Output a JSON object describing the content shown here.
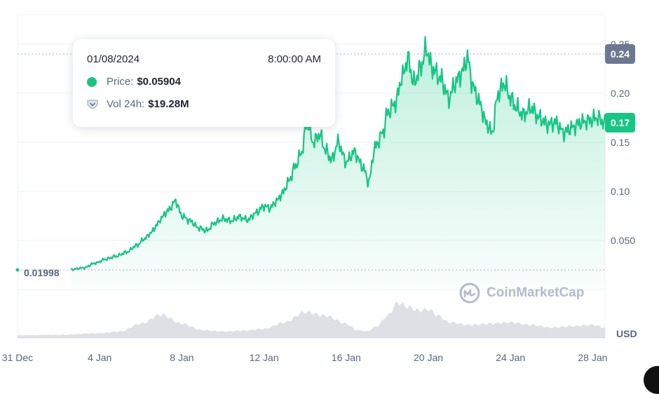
{
  "chart_data": {
    "type": "line",
    "x_labels": [
      "31 Dec",
      "4 Jan",
      "8 Jan",
      "12 Jan",
      "16 Jan",
      "20 Jan",
      "24 Jan",
      "28 Jan"
    ],
    "y_ticks": [
      "0.050",
      "0.10",
      "0.15",
      "0.20",
      "0.25"
    ],
    "y_tick_values": [
      0.05,
      0.1,
      0.15,
      0.2,
      0.25
    ],
    "ylim": [
      0.0,
      0.28
    ],
    "x_day_range": [
      0,
      28.6
    ],
    "price_series": {
      "days": [
        2.6,
        3.2,
        3.8,
        4.3,
        4.8,
        5.3,
        5.8,
        6.2,
        6.5,
        6.8,
        7.0,
        7.3,
        7.7,
        8.0,
        8.4,
        8.8,
        9.2,
        9.6,
        10.0,
        10.4,
        10.8,
        11.2,
        11.6,
        12.0,
        12.3,
        12.6,
        12.9,
        13.2,
        13.5,
        13.8,
        14.1,
        14.4,
        14.7,
        15.0,
        15.3,
        15.6,
        16.0,
        16.4,
        16.8,
        17.1,
        17.4,
        17.8,
        18.0,
        18.4,
        18.7,
        19.0,
        19.3,
        19.6,
        19.9,
        20.2,
        20.6,
        21.0,
        21.3,
        21.6,
        21.9,
        22.2,
        22.5,
        22.8,
        23.1,
        23.4,
        23.7,
        24.0,
        24.3,
        24.6,
        25.0,
        25.4,
        25.8,
        26.2,
        26.6,
        27.0,
        27.4,
        27.8,
        28.2,
        28.6
      ],
      "values": [
        0.0205,
        0.022,
        0.027,
        0.031,
        0.034,
        0.038,
        0.045,
        0.052,
        0.058,
        0.066,
        0.073,
        0.08,
        0.09,
        0.075,
        0.07,
        0.063,
        0.06,
        0.068,
        0.072,
        0.07,
        0.074,
        0.071,
        0.078,
        0.085,
        0.083,
        0.09,
        0.098,
        0.11,
        0.125,
        0.138,
        0.17,
        0.15,
        0.158,
        0.142,
        0.132,
        0.15,
        0.13,
        0.14,
        0.125,
        0.11,
        0.145,
        0.16,
        0.18,
        0.19,
        0.215,
        0.235,
        0.21,
        0.225,
        0.245,
        0.225,
        0.215,
        0.195,
        0.21,
        0.22,
        0.235,
        0.205,
        0.19,
        0.17,
        0.16,
        0.2,
        0.21,
        0.195,
        0.185,
        0.178,
        0.185,
        0.175,
        0.168,
        0.17,
        0.16,
        0.165,
        0.17,
        0.172,
        0.175,
        0.17
      ],
      "color": "#16c784"
    },
    "volume_series": {
      "days": [
        0,
        2,
        4,
        5,
        6,
        7,
        8,
        9,
        10,
        11,
        12,
        13,
        14,
        15,
        16,
        16.5,
        17,
        17.5,
        18,
        18.5,
        19,
        19.5,
        20,
        20.5,
        21,
        22,
        23,
        24,
        25,
        26,
        27,
        28,
        28.6
      ],
      "values": [
        0.1,
        0.12,
        0.18,
        0.25,
        0.55,
        0.9,
        0.55,
        0.3,
        0.25,
        0.28,
        0.35,
        0.6,
        1.0,
        0.85,
        0.55,
        0.3,
        0.25,
        0.45,
        0.85,
        1.35,
        1.2,
        1.05,
        1.1,
        0.85,
        0.6,
        0.5,
        0.55,
        0.6,
        0.5,
        0.4,
        0.45,
        0.5,
        0.4
      ],
      "color": "#c2c7d0"
    },
    "open_value_label": "0.01998",
    "open_value": 0.01998,
    "high_badge": {
      "label": "0.24",
      "value": 0.24,
      "color": "#6d7890"
    },
    "current_badge": {
      "label": "0.17",
      "value": 0.17,
      "color": "#16c784"
    },
    "currency_label": "USD",
    "watermark": "CoinMarketCap"
  },
  "tooltip": {
    "date": "01/08/2024",
    "time": "8:00:00 AM",
    "price_label": "Price:",
    "price_value": "$0.05904",
    "vol_label": "Vol 24h:",
    "vol_value": "$19.28M"
  }
}
